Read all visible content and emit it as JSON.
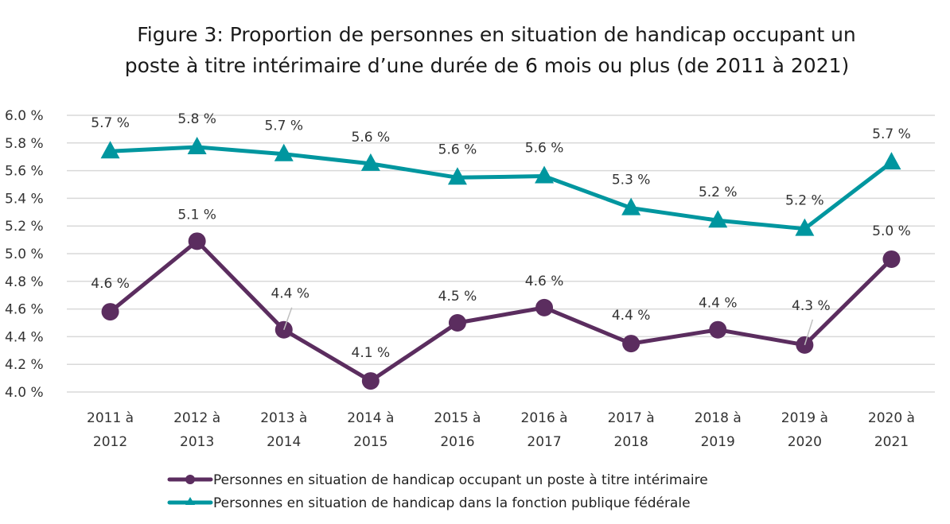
{
  "chart_data": {
    "type": "line",
    "title": "Figure 3: Proportion de personnes en situation de handicap occupant un poste à titre intérimaire d’une durée de 6 mois ou plus (de 2011 à 2021)",
    "title_lines": [
      "Figure 3: Proportion de personnes en situation de handicap occupant un",
      "poste à titre intérimaire d’une durée de 6 mois ou plus (de 2011 à 2021)"
    ],
    "xlabel": "",
    "ylabel": "",
    "ylim": [
      4.0,
      6.0
    ],
    "ytick_step": 0.2,
    "ytick_labels": [
      "4.0 %",
      "4.2 %",
      "4.4 %",
      "4.6 %",
      "4.8 %",
      "5.0 %",
      "5.2 %",
      "5.4 %",
      "5.6 %",
      "5.8 %",
      "6.0 %"
    ],
    "grid": true,
    "legend_position": "bottom",
    "categories": [
      [
        "2011 à",
        "2012"
      ],
      [
        "2012 à",
        "2013"
      ],
      [
        "2013 à",
        "2014"
      ],
      [
        "2014 à",
        "2015"
      ],
      [
        "2015 à",
        "2016"
      ],
      [
        "2016 à",
        "2017"
      ],
      [
        "2017 à",
        "2018"
      ],
      [
        "2018 à",
        "2019"
      ],
      [
        "2019 à",
        "2020"
      ],
      [
        "2020 à",
        "2021"
      ]
    ],
    "series": [
      {
        "name": "Personnes en situation de handicap occupant un poste à titre intérimaire",
        "color": "#5b2d5f",
        "marker": "circle",
        "values": [
          4.58,
          5.09,
          4.45,
          4.08,
          4.5,
          4.61,
          4.35,
          4.45,
          4.34,
          4.96
        ],
        "labels": [
          "4.6 %",
          "5.1 %",
          "4.4 %",
          "4.1 %",
          "4.5 %",
          "4.6 %",
          "4.4 %",
          "4.4 %",
          "4.3 %",
          "5.0 %"
        ]
      },
      {
        "name": "Personnes en situation de handicap dans la fonction publique fédérale",
        "color": "#00969f",
        "marker": "triangle",
        "values": [
          5.74,
          5.77,
          5.72,
          5.65,
          5.55,
          5.56,
          5.33,
          5.24,
          5.18,
          5.66
        ],
        "labels": [
          "5.7 %",
          "5.8 %",
          "5.7 %",
          "5.6 %",
          "5.6 %",
          "5.6 %",
          "5.3 %",
          "5.2 %",
          "5.2 %",
          "5.7 %"
        ]
      }
    ]
  }
}
